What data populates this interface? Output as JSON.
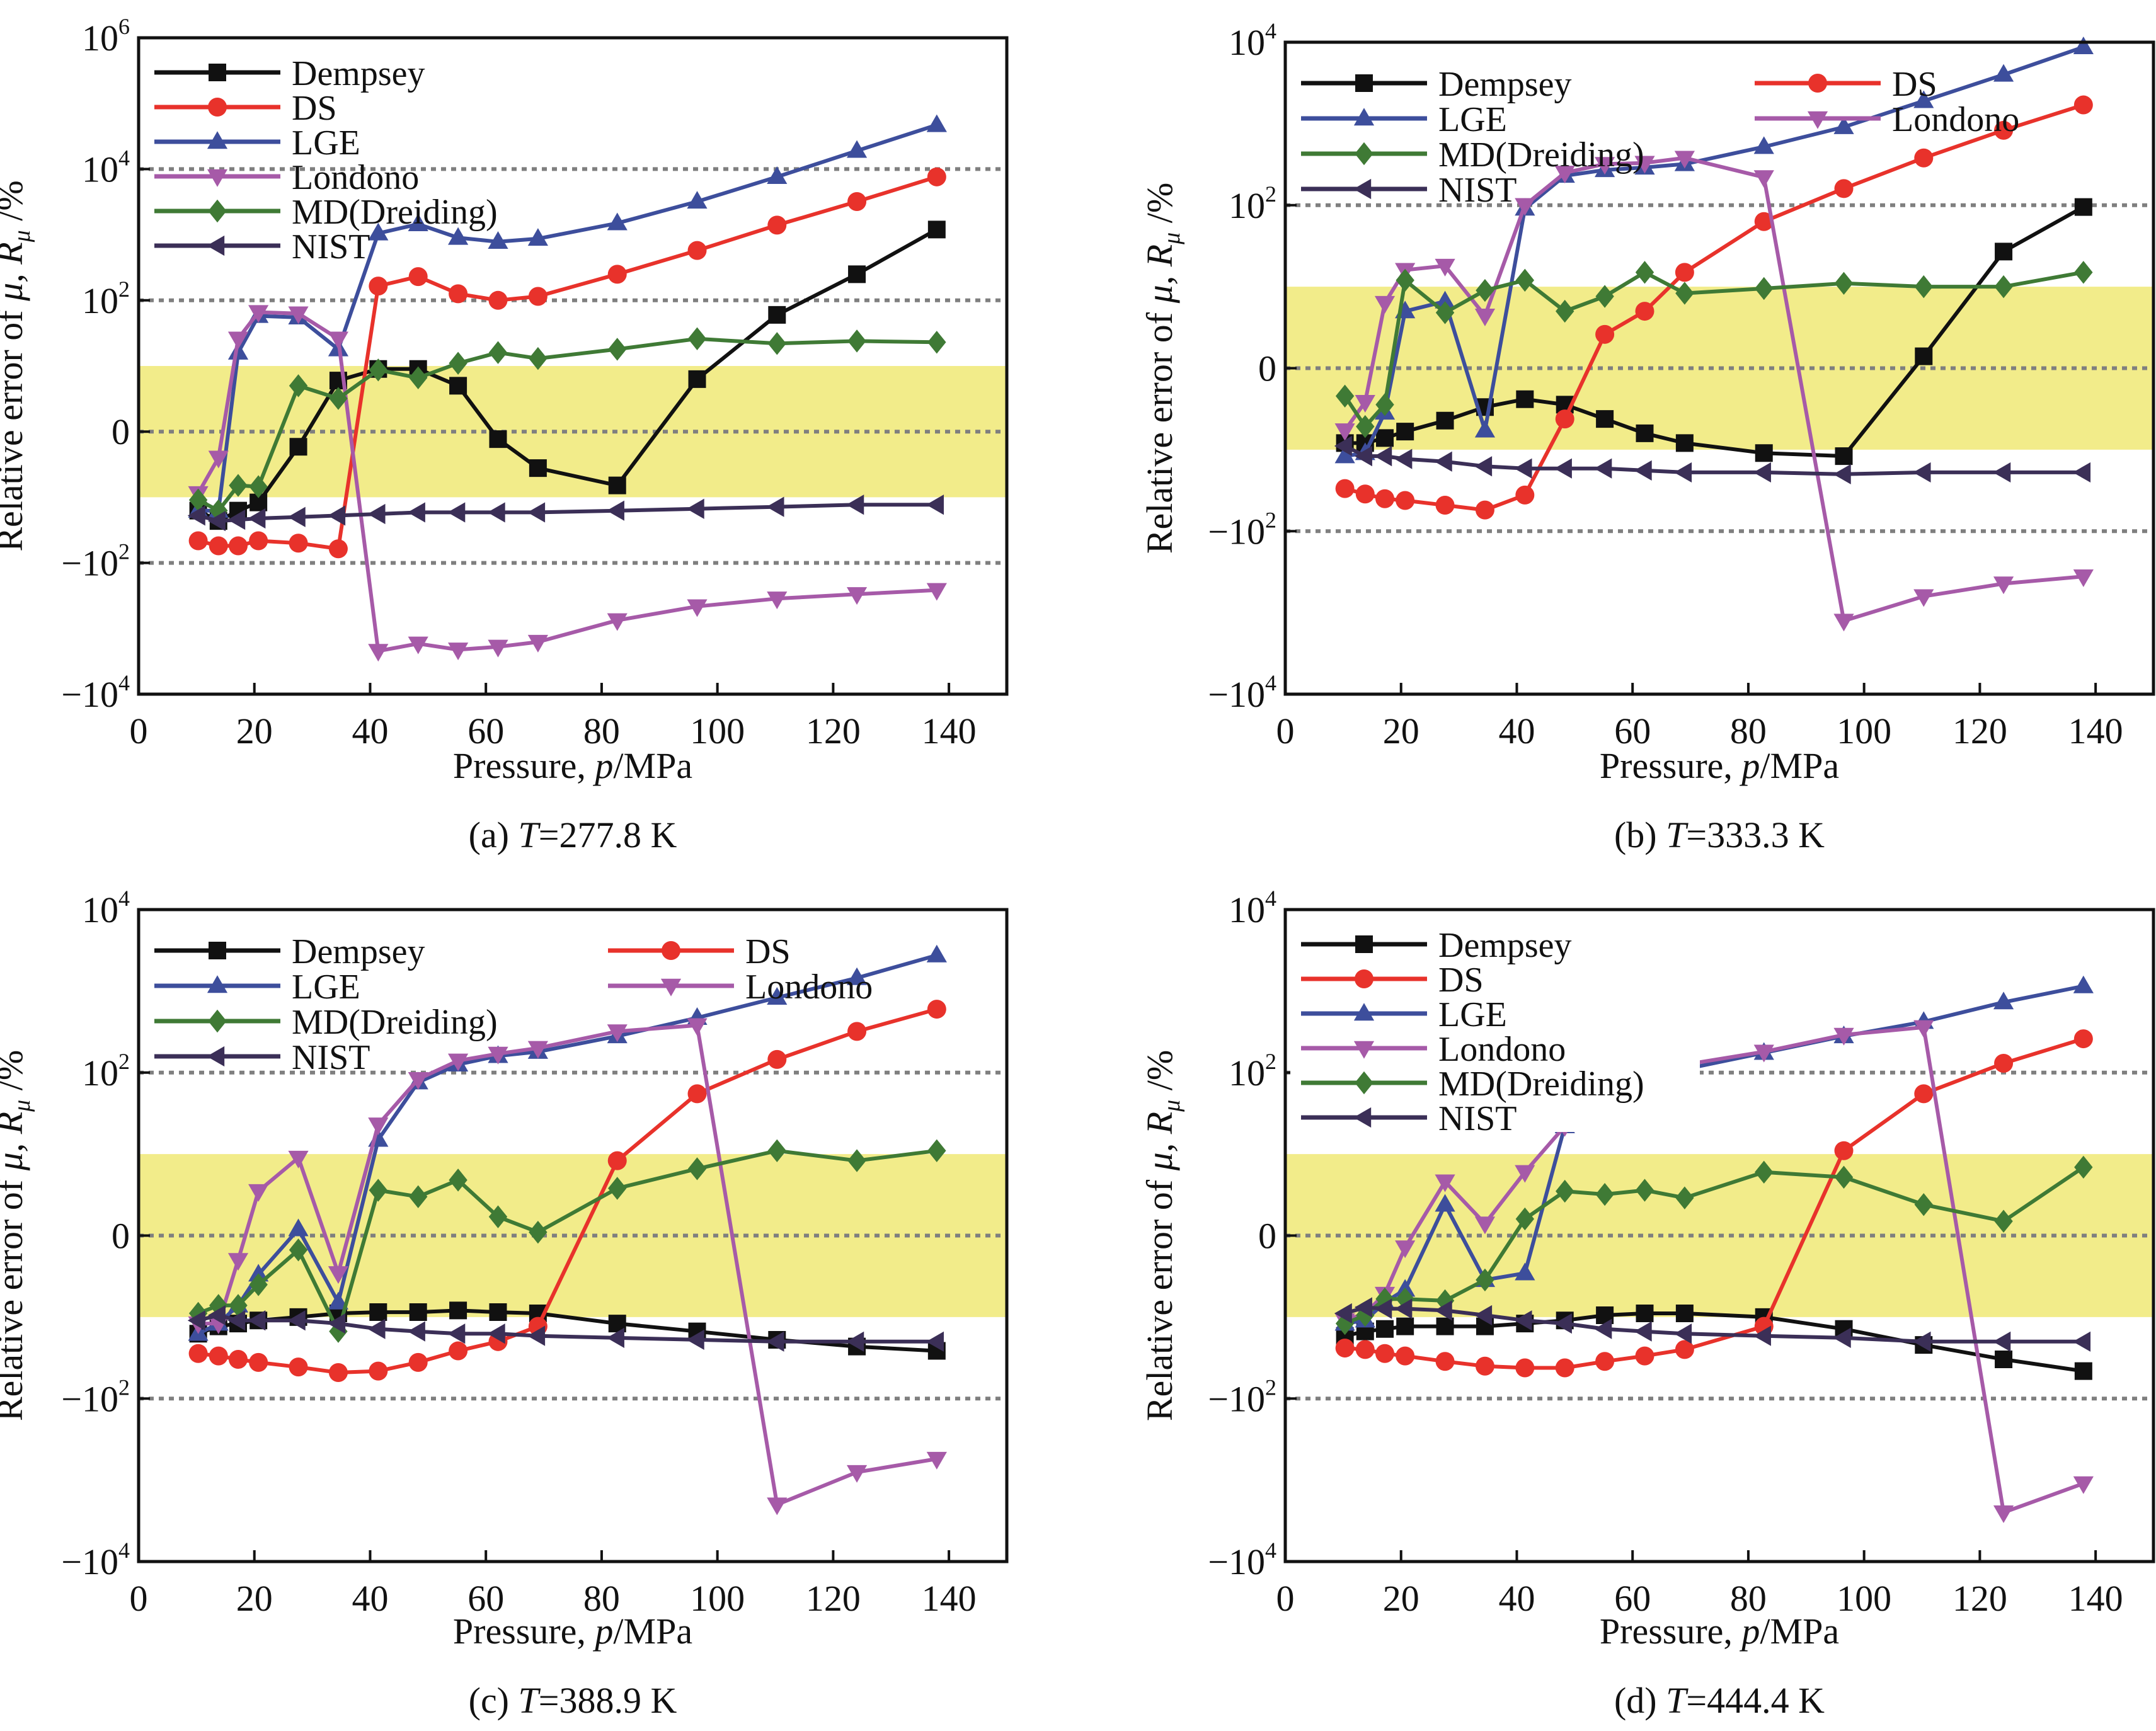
{
  "figure": {
    "colors": {
      "Dempsey": "#111111",
      "DS": "#e8322b",
      "LGE": "#3d4e9c",
      "Londono": "#a65aa8",
      "MD(Dreiding)": "#3f7a35",
      "NIST": "#3b2f57",
      "band": "#f2ec8a",
      "gridline": "#7f7f7f"
    }
  },
  "chart_data": [
    {
      "id": "a",
      "type": "line",
      "caption_prefix": "(a) ",
      "caption_T": "T",
      "caption_value": "=277.8 K",
      "xlabel_prefix": "Pressure, ",
      "xlabel_var": "p",
      "xlabel_unit": "/MPa",
      "ylabel": "Relative error of μ, R",
      "ylabel_sub": "μ",
      "ylabel_unit": " /%",
      "yscale": "symlog (|y|≥1 on log10 scale, ±100 and ±10^4 evenly spaced from 0)",
      "xlim": [
        0,
        150
      ],
      "ylim": [
        -10000,
        1000000
      ],
      "xticks": [
        0,
        20,
        40,
        60,
        80,
        100,
        120,
        140
      ],
      "yticks": [
        {
          "base": "10",
          "exp": "6",
          "sign": "",
          "value": 1000000
        },
        {
          "base": "10",
          "exp": "4",
          "sign": "",
          "value": 10000
        },
        {
          "base": "10",
          "exp": "2",
          "sign": "",
          "value": 100
        },
        {
          "base": "0",
          "exp": "",
          "sign": "",
          "value": 0
        },
        {
          "base": "10",
          "exp": "2",
          "sign": "−",
          "value": -100
        },
        {
          "base": "10",
          "exp": "4",
          "sign": "−",
          "value": -10000
        }
      ],
      "gridlines": [
        10000,
        100,
        0,
        -100
      ],
      "band": [
        -10,
        10
      ],
      "legend": {
        "columns": 1,
        "placement": "top-left"
      },
      "x": [
        10.3,
        13.8,
        17.2,
        20.7,
        27.6,
        34.5,
        41.4,
        48.3,
        55.2,
        62.1,
        69.0,
        82.7,
        96.5,
        110.3,
        124.1,
        137.9
      ],
      "series": [
        {
          "name": "Dempsey",
          "marker": "square",
          "values": [
            -16,
            -23,
            -16,
            -12,
            -1.7,
            6,
            9,
            9,
            5,
            -1.3,
            -3.6,
            -6.6,
            6.3,
            60,
            250,
            1200
          ]
        },
        {
          "name": "DS",
          "marker": "circle",
          "values": [
            -46,
            -55,
            -55,
            -46,
            -50,
            -61,
            165,
            230,
            126,
            100,
            115,
            250,
            575,
            1400,
            3200,
            7600
          ]
        },
        {
          "name": "LGE",
          "marker": "triangle-up",
          "values": [
            -16,
            -16,
            16,
            58,
            55,
            18,
            1050,
            1450,
            900,
            780,
            870,
            1500,
            3200,
            7600,
            19000,
            47000
          ]
        },
        {
          "name": "Londono",
          "marker": "triangle-down",
          "values": [
            -8.7,
            -2.5,
            26,
            66,
            63,
            26,
            -2200,
            -1700,
            -2100,
            -1900,
            -1600,
            -750,
            -460,
            -350,
            -300,
            -260
          ]
        },
        {
          "name": "MD(Dreiding)",
          "marker": "diamond",
          "values": [
            -11,
            -16,
            -6.6,
            -6.9,
            5,
            3.2,
            8.7,
            6.6,
            11,
            16,
            13,
            18,
            26,
            22,
            24,
            23
          ]
        },
        {
          "name": "NIST",
          "marker": "triangle-left",
          "values": [
            -19,
            -23,
            -22,
            -21,
            -20,
            -19,
            -18,
            -17,
            -17,
            -17,
            -17,
            -16,
            -15,
            -14,
            -13,
            -13
          ]
        }
      ]
    },
    {
      "id": "b",
      "type": "line",
      "caption_prefix": "(b) ",
      "caption_T": "T",
      "caption_value": "=333.3 K",
      "xlabel_prefix": "Pressure, ",
      "xlabel_var": "p",
      "xlabel_unit": "/MPa",
      "ylabel": "Relative error of μ, R",
      "ylabel_sub": "μ",
      "ylabel_unit": " /%",
      "yscale": "symlog",
      "xlim": [
        0,
        150
      ],
      "ylim": [
        -10000,
        10000
      ],
      "xticks": [
        0,
        20,
        40,
        60,
        80,
        100,
        120,
        140
      ],
      "yticks": [
        {
          "base": "10",
          "exp": "4",
          "sign": "",
          "value": 10000
        },
        {
          "base": "10",
          "exp": "2",
          "sign": "",
          "value": 100
        },
        {
          "base": "0",
          "exp": "",
          "sign": "",
          "value": 0
        },
        {
          "base": "10",
          "exp": "2",
          "sign": "−",
          "value": -100
        },
        {
          "base": "10",
          "exp": "4",
          "sign": "−",
          "value": -10000
        }
      ],
      "gridlines": [
        100,
        0,
        -100
      ],
      "band": [
        -10,
        10
      ],
      "legend": {
        "columns": 2,
        "placement": "top-left"
      },
      "x": [
        10.3,
        13.8,
        17.2,
        20.7,
        27.6,
        34.5,
        41.4,
        48.3,
        55.2,
        62.1,
        69.0,
        82.7,
        96.5,
        110.3,
        124.1,
        137.9
      ],
      "series": [
        {
          "name": "Dempsey",
          "marker": "square",
          "values": [
            -8.3,
            -8.3,
            -7.2,
            -6,
            -4.4,
            -3,
            -2.4,
            -2.8,
            -4.2,
            -6.3,
            -8.3,
            -11,
            -12,
            1.4,
            27,
            95
          ]
        },
        {
          "name": "DS",
          "marker": "circle",
          "values": [
            -30,
            -35,
            -40,
            -42,
            -48,
            -55,
            -36,
            -4.2,
            2.6,
            5,
            15,
            63,
            160,
            380,
            830,
            1700
          ]
        },
        {
          "name": "LGE",
          "marker": "triangle-up",
          "values": [
            -12,
            -11,
            -3.5,
            5,
            6.6,
            -5.8,
            91,
            230,
            270,
            290,
            320,
            520,
            910,
            1900,
            4000,
            8700
          ]
        },
        {
          "name": "Londono",
          "marker": "triangle-down",
          "values": [
            -5.8,
            -2.6,
            6.3,
            16,
            18,
            4.4,
            100,
            250,
            320,
            330,
            380,
            220,
            -1260,
            -630,
            -440,
            -360
          ]
        },
        {
          "name": "MD(Dreiding)",
          "marker": "diamond",
          "values": [
            -2.2,
            -5.2,
            -2.8,
            12,
            4.8,
            9,
            12,
            5,
            7.6,
            15,
            8.3,
            9.5,
            11,
            10,
            10,
            15
          ]
        },
        {
          "name": "NIST",
          "marker": "triangle-left",
          "values": [
            -9,
            -12,
            -12,
            -13,
            -14,
            -16,
            -17,
            -17,
            -17,
            -18,
            -19,
            -19,
            -20,
            -19,
            -19,
            -19
          ]
        }
      ]
    },
    {
      "id": "c",
      "type": "line",
      "caption_prefix": "(c) ",
      "caption_T": "T",
      "caption_value": "=388.9 K",
      "xlabel_prefix": "Pressure, ",
      "xlabel_var": "p",
      "xlabel_unit": "/MPa",
      "ylabel": "Relative error of μ, R",
      "ylabel_sub": "μ",
      "ylabel_unit": " /%",
      "yscale": "symlog",
      "xlim": [
        0,
        150
      ],
      "ylim": [
        -10000,
        10000
      ],
      "xticks": [
        0,
        20,
        40,
        60,
        80,
        100,
        120,
        140
      ],
      "yticks": [
        {
          "base": "10",
          "exp": "4",
          "sign": "",
          "value": 10000
        },
        {
          "base": "10",
          "exp": "2",
          "sign": "",
          "value": 100
        },
        {
          "base": "0",
          "exp": "",
          "sign": "",
          "value": 0
        },
        {
          "base": "10",
          "exp": "2",
          "sign": "−",
          "value": -100
        },
        {
          "base": "10",
          "exp": "4",
          "sign": "−",
          "value": -10000
        }
      ],
      "gridlines": [
        100,
        0,
        -100
      ],
      "band": [
        -10,
        10
      ],
      "legend": {
        "columns": 2,
        "placement": "top-left"
      },
      "x": [
        10.3,
        13.8,
        17.2,
        20.7,
        27.6,
        34.5,
        41.4,
        48.3,
        55.2,
        62.1,
        69.0,
        82.7,
        96.5,
        110.3,
        124.1,
        137.9
      ],
      "series": [
        {
          "name": "Dempsey",
          "marker": "square",
          "values": [
            -16,
            -13,
            -12,
            -11,
            -10,
            -9,
            -8.7,
            -8.7,
            -8.3,
            -8.7,
            -9,
            -12,
            -15,
            -19,
            -23,
            -26
          ]
        },
        {
          "name": "DS",
          "marker": "circle",
          "values": [
            -28,
            -30,
            -33,
            -36,
            -41,
            -48,
            -46,
            -36,
            -26,
            -20,
            -13,
            8.3,
            55,
            145,
            320,
            600
          ]
        },
        {
          "name": "LGE",
          "marker": "triangle-up",
          "values": [
            -16,
            -12,
            -7.2,
            -3,
            1.2,
            -6.6,
            15,
            76,
            126,
            160,
            180,
            280,
            470,
            830,
            1450,
            2750
          ]
        },
        {
          "name": "Londono",
          "marker": "triangle-down",
          "values": [
            -12,
            -12,
            -2,
            3.5,
            9,
            -2.9,
            23,
            83,
            140,
            170,
            200,
            320,
            380,
            -2000,
            -800,
            -550
          ]
        },
        {
          "name": "MD(Dreiding)",
          "marker": "diamond",
          "values": [
            -9,
            -7.2,
            -7.2,
            -4,
            -1.5,
            -15,
            3.6,
            3,
            4.8,
            1.7,
            1.1,
            3.8,
            6.6,
            11,
            8.3,
            11
          ]
        },
        {
          "name": "NIST",
          "marker": "triangle-left",
          "values": [
            -11,
            -9.5,
            -11,
            -11,
            -11,
            -12,
            -14,
            -15,
            -16,
            -16,
            -17,
            -18,
            -19,
            -20,
            -20,
            -20
          ]
        }
      ]
    },
    {
      "id": "d",
      "type": "line",
      "caption_prefix": "(d) ",
      "caption_T": "T",
      "caption_value": "=444.4 K",
      "xlabel_prefix": "Pressure, ",
      "xlabel_var": "p",
      "xlabel_unit": "/MPa",
      "ylabel": "Relative error of μ, R",
      "ylabel_sub": "μ",
      "ylabel_unit": " /%",
      "yscale": "symlog",
      "xlim": [
        0,
        150
      ],
      "ylim": [
        -10000,
        10000
      ],
      "xticks": [
        0,
        20,
        40,
        60,
        80,
        100,
        120,
        140
      ],
      "yticks": [
        {
          "base": "10",
          "exp": "4",
          "sign": "",
          "value": 10000
        },
        {
          "base": "10",
          "exp": "2",
          "sign": "",
          "value": 100
        },
        {
          "base": "0",
          "exp": "",
          "sign": "",
          "value": 0
        },
        {
          "base": "10",
          "exp": "2",
          "sign": "−",
          "value": -100
        },
        {
          "base": "10",
          "exp": "4",
          "sign": "−",
          "value": -10000
        }
      ],
      "gridlines": [
        100,
        0,
        -100
      ],
      "band": [
        -10,
        10
      ],
      "legend": {
        "columns": 1,
        "placement": "top-left"
      },
      "x": [
        10.3,
        13.8,
        17.2,
        20.7,
        27.6,
        34.5,
        41.4,
        48.3,
        55.2,
        62.1,
        69.0,
        82.7,
        96.5,
        110.3,
        124.1,
        137.9
      ],
      "series": [
        {
          "name": "Dempsey",
          "marker": "square",
          "values": [
            -17,
            -15,
            -14,
            -13,
            -13,
            -13,
            -12,
            -11,
            -9.5,
            -9,
            -9,
            -10,
            -14,
            -22,
            -33,
            -46
          ]
        },
        {
          "name": "DS",
          "marker": "circle",
          "values": [
            -24,
            -25,
            -28,
            -30,
            -35,
            -40,
            -42,
            -42,
            -35,
            -30,
            -25,
            -13,
            11,
            55,
            130,
            260
          ]
        },
        {
          "name": "LGE",
          "marker": "triangle-up",
          "values": [
            -12,
            -11,
            -6.6,
            -4.6,
            2.4,
            -3.5,
            -2.9,
            22,
            60,
            90,
            110,
            175,
            280,
            420,
            730,
            1150
          ],
          "gap_after_index": 7
        },
        {
          "name": "Londono",
          "marker": "triangle-down",
          "values": [
            -11,
            -9,
            -5.2,
            -1.4,
            4.6,
            1.4,
            6,
            22,
            66,
            95,
            125,
            180,
            290,
            360,
            -2500,
            -1100
          ],
          "gap_after_index": 7
        },
        {
          "name": "MD(Dreiding)",
          "marker": "diamond",
          "values": [
            -12,
            -9.5,
            -6,
            -6,
            -6.3,
            -3.5,
            1.6,
            3.5,
            3.2,
            3.6,
            2.9,
            6,
            5.2,
            2.4,
            1.5,
            6.9
          ]
        },
        {
          "name": "NIST",
          "marker": "triangle-left",
          "values": [
            -9,
            -7.6,
            -7.9,
            -7.9,
            -8.3,
            -9.5,
            -11,
            -12,
            -14,
            -15,
            -16,
            -17,
            -18,
            -20,
            -20,
            -20
          ]
        }
      ]
    }
  ]
}
